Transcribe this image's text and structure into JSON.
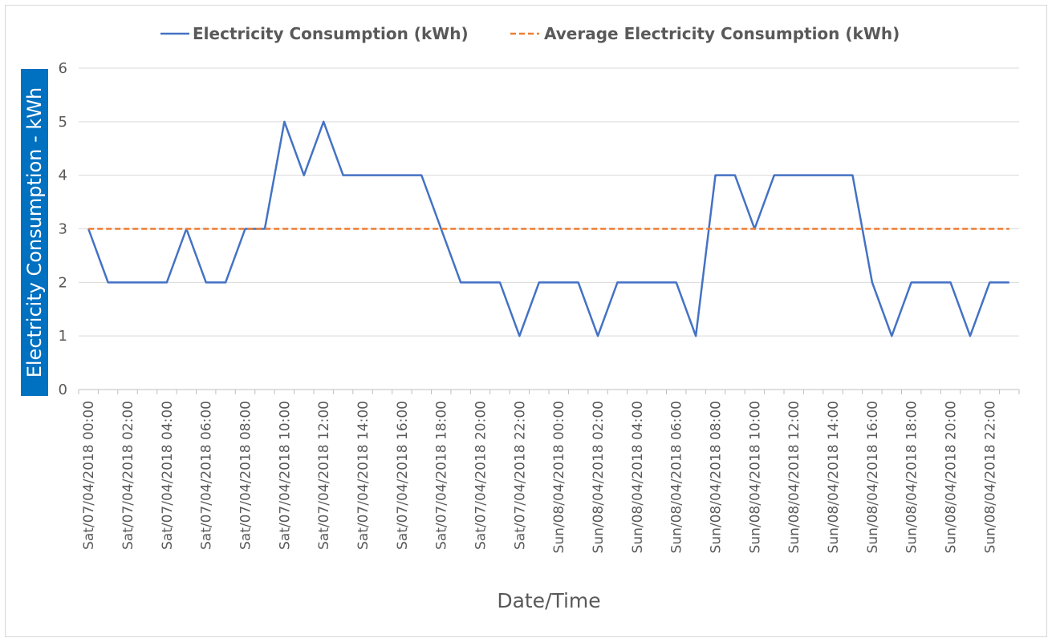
{
  "chart_data": {
    "type": "line",
    "xlabel": "Date/Time",
    "ylabel": "Electricity Consumption - kWh",
    "ylim": [
      0,
      6
    ],
    "yticks": [
      0,
      1,
      2,
      3,
      4,
      5,
      6
    ],
    "grid": true,
    "legend_position": "top",
    "x": [
      "Sat/07/04/2018 00:00",
      "Sat/07/04/2018 01:00",
      "Sat/07/04/2018 02:00",
      "Sat/07/04/2018 03:00",
      "Sat/07/04/2018 04:00",
      "Sat/07/04/2018 05:00",
      "Sat/07/04/2018 06:00",
      "Sat/07/04/2018 07:00",
      "Sat/07/04/2018 08:00",
      "Sat/07/04/2018 09:00",
      "Sat/07/04/2018 10:00",
      "Sat/07/04/2018 11:00",
      "Sat/07/04/2018 12:00",
      "Sat/07/04/2018 13:00",
      "Sat/07/04/2018 14:00",
      "Sat/07/04/2018 15:00",
      "Sat/07/04/2018 16:00",
      "Sat/07/04/2018 17:00",
      "Sat/07/04/2018 18:00",
      "Sat/07/04/2018 19:00",
      "Sat/07/04/2018 20:00",
      "Sat/07/04/2018 21:00",
      "Sat/07/04/2018 22:00",
      "Sat/07/04/2018 23:00",
      "Sun/08/04/2018 00:00",
      "Sun/08/04/2018 01:00",
      "Sun/08/04/2018 02:00",
      "Sun/08/04/2018 03:00",
      "Sun/08/04/2018 04:00",
      "Sun/08/04/2018 05:00",
      "Sun/08/04/2018 06:00",
      "Sun/08/04/2018 07:00",
      "Sun/08/04/2018 08:00",
      "Sun/08/04/2018 09:00",
      "Sun/08/04/2018 10:00",
      "Sun/08/04/2018 11:00",
      "Sun/08/04/2018 12:00",
      "Sun/08/04/2018 13:00",
      "Sun/08/04/2018 14:00",
      "Sun/08/04/2018 15:00",
      "Sun/08/04/2018 16:00",
      "Sun/08/04/2018 17:00",
      "Sun/08/04/2018 18:00",
      "Sun/08/04/2018 19:00",
      "Sun/08/04/2018 20:00",
      "Sun/08/04/2018 21:00",
      "Sun/08/04/2018 22:00",
      "Sun/08/04/2018 23:00"
    ],
    "x_tick_labels": [
      "Sat/07/04/2018 00:00",
      "Sat/07/04/2018 02:00",
      "Sat/07/04/2018 04:00",
      "Sat/07/04/2018 06:00",
      "Sat/07/04/2018 08:00",
      "Sat/07/04/2018 10:00",
      "Sat/07/04/2018 12:00",
      "Sat/07/04/2018 14:00",
      "Sat/07/04/2018 16:00",
      "Sat/07/04/2018 18:00",
      "Sat/07/04/2018 20:00",
      "Sat/07/04/2018 22:00",
      "Sun/08/04/2018 00:00",
      "Sun/08/04/2018 02:00",
      "Sun/08/04/2018 04:00",
      "Sun/08/04/2018 06:00",
      "Sun/08/04/2018 08:00",
      "Sun/08/04/2018 10:00",
      "Sun/08/04/2018 12:00",
      "Sun/08/04/2018 14:00",
      "Sun/08/04/2018 16:00",
      "Sun/08/04/2018 18:00",
      "Sun/08/04/2018 20:00",
      "Sun/08/04/2018 22:00"
    ],
    "series": [
      {
        "name": "Electricity Consumption (kWh)",
        "style": "solid",
        "color": "#4472c4",
        "values": [
          3,
          2,
          2,
          2,
          2,
          3,
          2,
          2,
          3,
          3,
          5,
          4,
          5,
          4,
          4,
          4,
          4,
          4,
          3,
          2,
          2,
          2,
          1,
          2,
          2,
          2,
          1,
          2,
          2,
          2,
          2,
          1,
          4,
          4,
          3,
          4,
          4,
          4,
          4,
          4,
          2,
          1,
          2,
          2,
          2,
          1,
          2,
          2
        ]
      },
      {
        "name": "Average Electricity Consumption (kWh)",
        "style": "dashed",
        "color": "#ed7d31",
        "values": [
          3,
          3,
          3,
          3,
          3,
          3,
          3,
          3,
          3,
          3,
          3,
          3,
          3,
          3,
          3,
          3,
          3,
          3,
          3,
          3,
          3,
          3,
          3,
          3,
          3,
          3,
          3,
          3,
          3,
          3,
          3,
          3,
          3,
          3,
          3,
          3,
          3,
          3,
          3,
          3,
          3,
          3,
          3,
          3,
          3,
          3,
          3,
          3
        ]
      }
    ]
  },
  "colors": {
    "gridline": "#d9d9d9",
    "axis": "#bfbfbf",
    "y_title_background": "#0070c0",
    "text": "#595959"
  }
}
